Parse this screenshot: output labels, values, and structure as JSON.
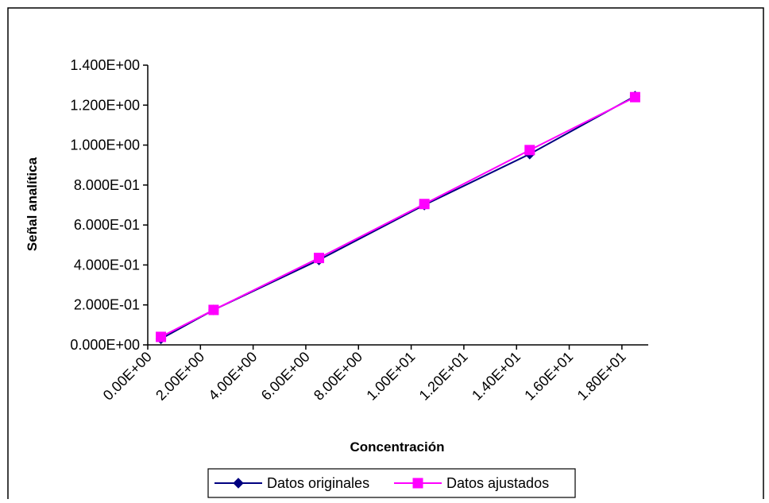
{
  "chart_data": {
    "type": "line",
    "title": "",
    "xlabel": "Concentración",
    "ylabel": "Señal analítica",
    "xlim": [
      0,
      19
    ],
    "ylim": [
      0,
      1.4
    ],
    "x_ticks": [
      0,
      2,
      4,
      6,
      8,
      10,
      12,
      14,
      16,
      18
    ],
    "x_tick_labels": [
      "0.00E+00",
      "2.00E+00",
      "4.00E+00",
      "6.00E+00",
      "8.00E+00",
      "1.00E+01",
      "1.20E+01",
      "1.40E+01",
      "1.60E+01",
      "1.80E+01"
    ],
    "y_ticks": [
      0,
      0.2,
      0.4,
      0.6,
      0.8,
      1.0,
      1.2,
      1.4
    ],
    "y_tick_labels": [
      "0.000E+00",
      "2.000E-01",
      "4.000E-01",
      "6.000E-01",
      "8.000E-01",
      "1.000E+00",
      "1.200E+00",
      "1.400E+00"
    ],
    "grid": false,
    "legend_position": "bottom",
    "series": [
      {
        "name": "Datos originales",
        "color": "#000080",
        "marker": "diamond",
        "x": [
          0.5,
          2.5,
          6.5,
          10.5,
          14.5,
          18.5
        ],
        "y": [
          0.03,
          0.175,
          0.425,
          0.7,
          0.955,
          1.245
        ]
      },
      {
        "name": "Datos ajustados",
        "color": "#FF00FF",
        "marker": "square",
        "x": [
          0.5,
          2.5,
          6.5,
          10.5,
          14.5,
          18.5
        ],
        "y": [
          0.04,
          0.175,
          0.435,
          0.705,
          0.975,
          1.24
        ]
      }
    ]
  }
}
